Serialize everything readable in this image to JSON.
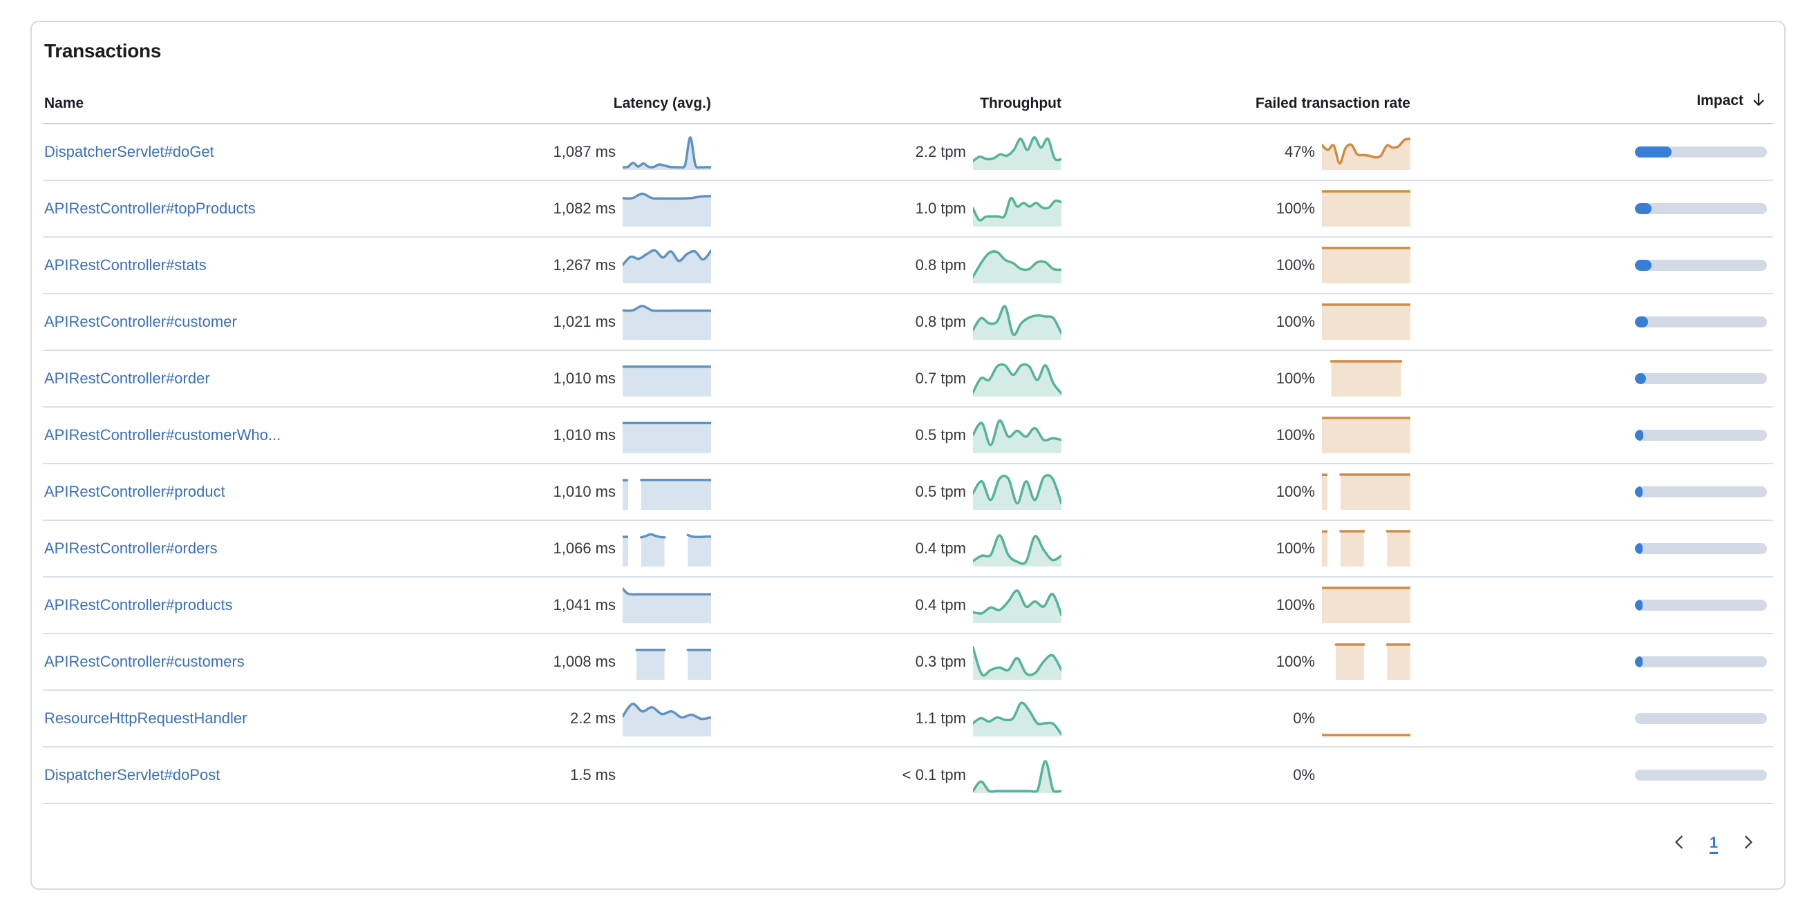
{
  "panel": {
    "title": "Transactions"
  },
  "table": {
    "columns": {
      "name": "Name",
      "latency": "Latency (avg.)",
      "throughput": "Throughput",
      "failed_rate": "Failed transaction rate",
      "impact": "Impact"
    },
    "sort": {
      "column": "impact",
      "direction": "desc",
      "icon": "arrow-down-icon"
    },
    "rows": [
      {
        "name": "DispatcherServlet#doGet",
        "latency": "1,087 ms",
        "throughput": "2.2 tpm",
        "failed_rate": "47%",
        "impact_pct": 27.5,
        "latency_spark": [
          0.04,
          0.05,
          0.17,
          0.06,
          0.15,
          0.05,
          0.05,
          0.12,
          0.09,
          0.05,
          0.04,
          0.04,
          0.1,
          0.92,
          0.1,
          0.04,
          0.04,
          0.04
        ],
        "throughput_spark": [
          0.22,
          0.35,
          0.28,
          0.3,
          0.42,
          0.38,
          0.55,
          0.88,
          0.55,
          0.92,
          0.62,
          0.88,
          0.3,
          0.28
        ],
        "failed_rate_spark": [
          0.7,
          0.55,
          0.68,
          0.15,
          0.6,
          0.7,
          0.42,
          0.4,
          0.38,
          0.33,
          0.38,
          0.68,
          0.62,
          0.66,
          0.85,
          0.88
        ]
      },
      {
        "name": "APIRestController#topProducts",
        "latency": "1,082 ms",
        "throughput": "1.0 tpm",
        "failed_rate": "100%",
        "impact_pct": 12.5,
        "latency_spark": [
          0.8,
          0.8,
          0.93,
          0.8,
          0.79,
          0.79,
          0.79,
          0.8,
          0.85,
          0.86
        ],
        "throughput_spark": [
          0.5,
          0.15,
          0.25,
          0.26,
          0.26,
          0.27,
          0.8,
          0.55,
          0.66,
          0.55,
          0.66,
          0.52,
          0.52,
          0.72,
          0.68
        ],
        "failed_rate_spark": [
          1,
          1,
          1,
          1,
          1,
          1,
          1,
          1,
          1,
          1
        ]
      },
      {
        "name": "APIRestController#stats",
        "latency": "1,267 ms",
        "throughput": "0.8 tpm",
        "failed_rate": "100%",
        "impact_pct": 12.5,
        "latency_spark": [
          0.5,
          0.74,
          0.68,
          0.82,
          0.93,
          0.72,
          0.9,
          0.62,
          0.82,
          0.9,
          0.66,
          0.92
        ],
        "throughput_spark": [
          0.15,
          0.55,
          0.85,
          0.88,
          0.65,
          0.55,
          0.38,
          0.38,
          0.58,
          0.58,
          0.38,
          0.36
        ],
        "failed_rate_spark": [
          1,
          1,
          1,
          1,
          1,
          1,
          1,
          1,
          1,
          1
        ]
      },
      {
        "name": "APIRestController#customer",
        "latency": "1,021 ms",
        "throughput": "0.8 tpm",
        "failed_rate": "100%",
        "impact_pct": 10,
        "latency_spark": [
          0.83,
          0.83,
          0.96,
          0.83,
          0.82,
          0.82,
          0.82,
          0.82,
          0.82,
          0.82
        ],
        "throughput_spark": [
          0.25,
          0.6,
          0.45,
          0.5,
          0.95,
          0.12,
          0.45,
          0.62,
          0.68,
          0.65,
          0.6,
          0.15
        ],
        "failed_rate_spark": [
          1,
          1,
          1,
          1,
          1,
          1,
          1,
          1,
          1,
          1
        ]
      },
      {
        "name": "APIRestController#order",
        "latency": "1,010 ms",
        "throughput": "0.7 tpm",
        "failed_rate": "100%",
        "impact_pct": 8.5,
        "latency_spark": [
          0.84,
          0.84,
          0.84,
          0.84,
          0.84,
          0.84,
          0.84,
          0.84,
          0.84,
          0.84
        ],
        "throughput_spark": [
          0.08,
          0.5,
          0.45,
          0.85,
          0.88,
          0.6,
          0.88,
          0.85,
          0.45,
          0.88,
          0.35,
          0.05
        ],
        "failed_rate_spark": [
          null,
          null,
          1,
          1,
          1,
          1,
          1,
          1,
          1,
          1,
          1,
          1,
          1,
          1,
          1,
          1,
          1,
          1,
          null,
          null
        ]
      },
      {
        "name": "APIRestController#customerWho...",
        "latency": "1,010 ms",
        "throughput": "0.5 tpm",
        "failed_rate": "100%",
        "impact_pct": 6.5,
        "latency_spark": [
          0.85,
          0.85,
          0.85,
          0.85,
          0.85,
          0.85,
          0.85,
          0.85,
          0.85,
          0.85
        ],
        "throughput_spark": [
          0.5,
          0.85,
          0.2,
          0.92,
          0.45,
          0.62,
          0.45,
          0.7,
          0.35,
          0.4,
          0.35
        ],
        "failed_rate_spark": [
          1,
          1,
          1,
          1,
          1,
          1,
          1,
          1,
          1,
          1
        ]
      },
      {
        "name": "APIRestController#product",
        "latency": "1,010 ms",
        "throughput": "0.5 tpm",
        "failed_rate": "100%",
        "impact_pct": 6,
        "latency_spark": [
          0.84,
          null,
          null,
          null,
          0.84,
          0.84,
          0.84,
          0.84,
          0.84,
          0.84,
          0.84,
          0.84,
          0.84,
          0.84,
          0.84,
          0.84,
          0.84,
          0.84,
          0.84,
          0.84
        ],
        "throughput_spark": [
          0.45,
          0.8,
          0.25,
          0.88,
          0.88,
          0.15,
          0.8,
          0.25,
          0.92,
          0.88,
          0.15
        ],
        "failed_rate_spark": [
          1,
          null,
          null,
          null,
          1,
          1,
          1,
          1,
          1,
          1,
          1,
          1,
          1,
          1,
          1,
          1,
          1,
          1,
          1,
          1
        ]
      },
      {
        "name": "APIRestController#orders",
        "latency": "1,066 ms",
        "throughput": "0.4 tpm",
        "failed_rate": "100%",
        "impact_pct": 5,
        "latency_spark": [
          0.84,
          null,
          null,
          null,
          0.82,
          0.86,
          0.91,
          0.87,
          0.83,
          0.82,
          null,
          null,
          null,
          null,
          0.89,
          0.84,
          0.83,
          0.83,
          0.84,
          0.84
        ],
        "throughput_spark": [
          0.12,
          0.28,
          0.3,
          0.88,
          0.3,
          0.1,
          0.1,
          0.85,
          0.45,
          0.15,
          0.28
        ],
        "failed_rate_spark": [
          1,
          null,
          null,
          null,
          1,
          1,
          1,
          1,
          1,
          1,
          null,
          null,
          null,
          null,
          1,
          1,
          1,
          1,
          1,
          1
        ]
      },
      {
        "name": "APIRestController#products",
        "latency": "1,041 ms",
        "throughput": "0.4 tpm",
        "failed_rate": "100%",
        "impact_pct": 5,
        "latency_spark": [
          0.98,
          0.84,
          0.81,
          0.81,
          0.81,
          0.81,
          0.81,
          0.81,
          0.81,
          0.81,
          0.81,
          0.81,
          0.81,
          0.81,
          0.81,
          0.81,
          0.81,
          0.81,
          0.81,
          0.81
        ],
        "throughput_spark": [
          0.28,
          0.25,
          0.42,
          0.35,
          0.6,
          0.92,
          0.45,
          0.6,
          0.45,
          0.82,
          0.2
        ],
        "failed_rate_spark": [
          1,
          1,
          1,
          1,
          1,
          1,
          1,
          1,
          1,
          1
        ]
      },
      {
        "name": "APIRestController#customers",
        "latency": "1,008 ms",
        "throughput": "0.3 tpm",
        "failed_rate": "100%",
        "impact_pct": 4,
        "latency_spark": [
          null,
          null,
          null,
          0.84,
          0.84,
          0.84,
          0.84,
          0.84,
          0.84,
          0.84,
          null,
          null,
          null,
          null,
          0.84,
          0.84,
          0.84,
          0.84,
          0.84,
          0.84
        ],
        "throughput_spark": [
          0.92,
          0.12,
          0.25,
          0.32,
          0.25,
          0.6,
          0.15,
          0.15,
          0.5,
          0.68,
          0.25
        ],
        "failed_rate_spark": [
          null,
          null,
          null,
          1,
          1,
          1,
          1,
          1,
          1,
          1,
          null,
          null,
          null,
          null,
          1,
          1,
          1,
          1,
          1,
          1
        ]
      },
      {
        "name": "ResourceHttpRequestHandler",
        "latency": "2.2 ms",
        "throughput": "1.1 tpm",
        "failed_rate": "0%",
        "impact_pct": 0,
        "latency_spark": [
          0.55,
          0.92,
          0.7,
          0.82,
          0.62,
          0.7,
          0.52,
          0.6,
          0.48,
          0.52
        ],
        "throughput_spark": [
          0.35,
          0.5,
          0.4,
          0.52,
          0.45,
          0.5,
          0.95,
          0.72,
          0.35,
          0.35,
          0.33,
          0.02
        ],
        "failed_rate_spark": [
          0,
          0,
          0,
          0,
          0,
          0,
          0,
          0,
          0,
          0
        ]
      },
      {
        "name": "DispatcherServlet#doPost",
        "latency": "1.5 ms",
        "throughput": "< 0.1 tpm",
        "failed_rate": "0%",
        "impact_pct": 0,
        "latency_spark": null,
        "throughput_spark": [
          0.02,
          0.3,
          0.02,
          0.02,
          0.02,
          0.02,
          0.02,
          0.02,
          0.02,
          0.9,
          0.02,
          0.02
        ],
        "failed_rate_spark": null
      }
    ]
  },
  "pagination": {
    "current_page": "1"
  },
  "colors": {
    "latency_line": "#6092c0",
    "throughput_line": "#54b399",
    "failed_rate_line": "#d08c45",
    "impact_fill": "#387dd6",
    "impact_track": "#d3dae6",
    "link": "#3a6fc0",
    "accent": "#337ad8"
  }
}
